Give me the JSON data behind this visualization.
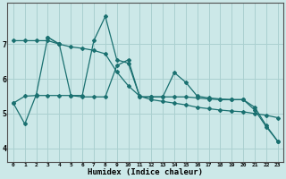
{
  "xlabel": "Humidex (Indice chaleur)",
  "bg_color": "#cce8e8",
  "grid_color": "#aad0d0",
  "line_color": "#1a7070",
  "x_ticks": [
    0,
    1,
    2,
    3,
    4,
    5,
    6,
    7,
    8,
    9,
    10,
    11,
    12,
    13,
    14,
    15,
    16,
    17,
    18,
    19,
    20,
    21,
    22,
    23
  ],
  "y_ticks": [
    4,
    5,
    6,
    7
  ],
  "ylim": [
    3.6,
    8.2
  ],
  "xlim": [
    -0.5,
    23.5
  ],
  "series": [
    [
      5.3,
      4.7,
      5.55,
      7.2,
      7.0,
      5.52,
      5.52,
      7.1,
      7.8,
      6.55,
      6.45,
      5.48,
      5.48,
      5.48,
      6.18,
      5.9,
      5.5,
      5.45,
      5.42,
      5.4,
      5.4,
      5.18,
      4.65,
      4.2
    ],
    [
      5.3,
      5.5,
      5.52,
      5.52,
      5.52,
      5.52,
      5.48,
      5.48,
      5.48,
      6.38,
      6.55,
      5.48,
      5.48,
      5.48,
      5.48,
      5.48,
      5.45,
      5.42,
      5.4,
      5.4,
      5.4,
      5.1,
      4.62,
      4.2
    ],
    [
      null,
      null,
      null,
      7.2,
      7.0,
      null,
      null,
      null,
      null,
      null,
      null,
      null,
      null,
      null,
      null,
      null,
      null,
      null,
      null,
      null,
      null,
      null,
      null,
      null
    ],
    [
      7.1,
      7.1,
      7.1,
      7.1,
      7.0,
      6.92,
      6.88,
      6.82,
      6.72,
      6.2,
      5.8,
      5.5,
      5.4,
      5.35,
      5.3,
      5.25,
      5.18,
      5.14,
      5.1,
      5.07,
      5.05,
      5.0,
      4.95,
      4.88
    ]
  ]
}
